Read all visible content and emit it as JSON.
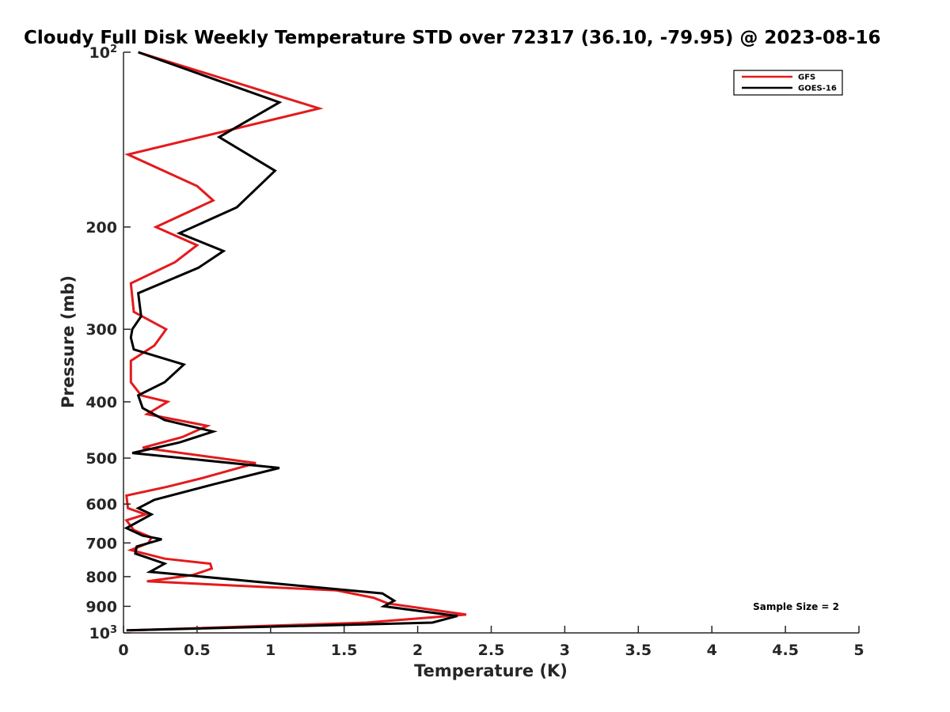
{
  "chart_data": {
    "type": "line",
    "title": "Cloudy Full Disk Weekly Temperature STD over 72317 (36.10, -79.95) @ 2023-08-16",
    "xlabel": "Temperature (K)",
    "ylabel": "Pressure (mb)",
    "xlim": [
      0,
      5
    ],
    "ylim": [
      100,
      1000
    ],
    "yscale": "log",
    "y_reversed": true,
    "x_ticks": [
      {
        "value": 0,
        "label": "0"
      },
      {
        "value": 0.5,
        "label": "0.5"
      },
      {
        "value": 1,
        "label": "1"
      },
      {
        "value": 1.5,
        "label": "1.5"
      },
      {
        "value": 2,
        "label": "2"
      },
      {
        "value": 2.5,
        "label": "2.5"
      },
      {
        "value": 3,
        "label": "3"
      },
      {
        "value": 3.5,
        "label": "3.5"
      },
      {
        "value": 4,
        "label": "4"
      },
      {
        "value": 4.5,
        "label": "4.5"
      },
      {
        "value": 5,
        "label": "5"
      }
    ],
    "y_ticks": [
      {
        "value": 100,
        "base": "10",
        "exp": "2"
      },
      {
        "value": 200,
        "label": "200"
      },
      {
        "value": 300,
        "label": "300"
      },
      {
        "value": 400,
        "label": "400"
      },
      {
        "value": 500,
        "label": "500"
      },
      {
        "value": 600,
        "label": "600"
      },
      {
        "value": 700,
        "label": "700"
      },
      {
        "value": 800,
        "label": "800"
      },
      {
        "value": 900,
        "label": "900"
      },
      {
        "value": 1000,
        "base": "10",
        "exp": "3"
      }
    ],
    "grid": false,
    "legend_position": "top-right",
    "annotation": "Sample Size = 2",
    "series": [
      {
        "name": "GFS",
        "color": "#e41a1c",
        "points": [
          [
            0.1,
            100
          ],
          [
            1.33,
            125
          ],
          [
            0.03,
            150
          ],
          [
            0.5,
            170
          ],
          [
            0.61,
            180
          ],
          [
            0.22,
            200
          ],
          [
            0.5,
            215
          ],
          [
            0.35,
            230
          ],
          [
            0.05,
            250
          ],
          [
            0.07,
            280
          ],
          [
            0.29,
            300
          ],
          [
            0.21,
            320
          ],
          [
            0.05,
            340
          ],
          [
            0.05,
            370
          ],
          [
            0.12,
            390
          ],
          [
            0.3,
            400
          ],
          [
            0.16,
            420
          ],
          [
            0.57,
            440
          ],
          [
            0.4,
            460
          ],
          [
            0.13,
            480
          ],
          [
            0.9,
            510
          ],
          [
            0.55,
            540
          ],
          [
            0.3,
            560
          ],
          [
            0.02,
            580
          ],
          [
            0.03,
            610
          ],
          [
            0.15,
            625
          ],
          [
            0.02,
            640
          ],
          [
            0.07,
            665
          ],
          [
            0.19,
            685
          ],
          [
            0.17,
            700
          ],
          [
            0.05,
            720
          ],
          [
            0.28,
            745
          ],
          [
            0.59,
            760
          ],
          [
            0.6,
            775
          ],
          [
            0.47,
            795
          ],
          [
            0.16,
            815
          ],
          [
            1.45,
            845
          ],
          [
            1.7,
            870
          ],
          [
            1.8,
            890
          ],
          [
            2.33,
            930
          ],
          [
            1.65,
            960
          ],
          [
            0.05,
            990
          ]
        ]
      },
      {
        "name": "GOES-16",
        "color": "#000000",
        "points": [
          [
            0.1,
            100
          ],
          [
            1.06,
            122
          ],
          [
            0.65,
            140
          ],
          [
            1.03,
            160
          ],
          [
            0.77,
            185
          ],
          [
            0.38,
            205
          ],
          [
            0.68,
            220
          ],
          [
            0.51,
            235
          ],
          [
            0.1,
            260
          ],
          [
            0.12,
            285
          ],
          [
            0.06,
            300
          ],
          [
            0.05,
            310
          ],
          [
            0.07,
            325
          ],
          [
            0.41,
            345
          ],
          [
            0.28,
            370
          ],
          [
            0.1,
            390
          ],
          [
            0.13,
            410
          ],
          [
            0.28,
            430
          ],
          [
            0.61,
            450
          ],
          [
            0.38,
            470
          ],
          [
            0.06,
            490
          ],
          [
            1.06,
            520
          ],
          [
            0.61,
            555
          ],
          [
            0.21,
            590
          ],
          [
            0.1,
            610
          ],
          [
            0.19,
            625
          ],
          [
            0.02,
            660
          ],
          [
            0.13,
            680
          ],
          [
            0.26,
            690
          ],
          [
            0.09,
            710
          ],
          [
            0.08,
            730
          ],
          [
            0.28,
            760
          ],
          [
            0.18,
            785
          ],
          [
            1.76,
            855
          ],
          [
            1.84,
            880
          ],
          [
            1.77,
            900
          ],
          [
            2.27,
            935
          ],
          [
            2.1,
            960
          ],
          [
            0.02,
            990
          ]
        ]
      }
    ]
  }
}
